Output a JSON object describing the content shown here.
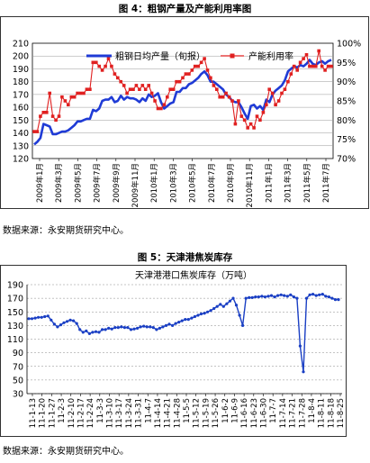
{
  "figure4": {
    "title": "图 4：粗钢产量及产能利用率图",
    "source": "数据来源：永安期货研究中心。"
  },
  "figure5": {
    "title": "图 5：天津港焦炭库存",
    "source": "数据来源：永安期货研究中心。"
  },
  "colors": {
    "production": "#1f3bd6",
    "utilization": "#e02020",
    "coke": "#1a3fc4",
    "plot_bg": "#ffffff"
  },
  "chart_data": [
    {
      "type": "line",
      "title": "",
      "legend_position": "top",
      "grid": true,
      "x_ticks": [
        "2009年1月",
        "2009年3月",
        "2009年5月",
        "2009年7月",
        "2009年9月",
        "2009年11月",
        "2010年1月",
        "2010年3月",
        "2010年5月",
        "2010年7月",
        "2010年9月",
        "2010年11月",
        "2011年1月",
        "2011年3月",
        "2011年5月",
        "2011年7月"
      ],
      "y_ticks": [
        "120",
        "130",
        "140",
        "150",
        "160",
        "170",
        "180",
        "190",
        "200",
        "210"
      ],
      "y2_ticks": [
        "70%",
        "75%",
        "80%",
        "85%",
        "90%",
        "95%",
        "100%"
      ],
      "ylim": [
        120,
        210
      ],
      "y2lim": [
        70,
        100
      ],
      "series": [
        {
          "name": "粗钢日均产量（旬报）",
          "axis": "left",
          "values": [
            131,
            133,
            136,
            147,
            146,
            145,
            139,
            139,
            140,
            141,
            141,
            142,
            144,
            146,
            149,
            149,
            150,
            151,
            151,
            158,
            157,
            159,
            165,
            166,
            166,
            168,
            164,
            165,
            169,
            166,
            168,
            167,
            167,
            166,
            164,
            167,
            165,
            170,
            168,
            169,
            171,
            164,
            159,
            161,
            163,
            164,
            172,
            172,
            175,
            175,
            178,
            179,
            181,
            183,
            186,
            188,
            185,
            180,
            180,
            178,
            176,
            174,
            170,
            168,
            165,
            164,
            164,
            160,
            155,
            151,
            161,
            162,
            159,
            161,
            158,
            166,
            164,
            170,
            173,
            175,
            177,
            181,
            188,
            190,
            192,
            191,
            193,
            192,
            194,
            197,
            194,
            193,
            195,
            196,
            194,
            196,
            197
          ]
        },
        {
          "name": "产能利用率",
          "axis": "right",
          "values": [
            77,
            77,
            81,
            82,
            82,
            87,
            81,
            80,
            81,
            86,
            85,
            84,
            86,
            86,
            87,
            87,
            87,
            88,
            88,
            95,
            95,
            94,
            93,
            94,
            96,
            94,
            92,
            91,
            90,
            89,
            87,
            88,
            88,
            89,
            88,
            89,
            88,
            89,
            87,
            85,
            83,
            83,
            84,
            86,
            88,
            88,
            90,
            90,
            91,
            92,
            92,
            93,
            94,
            94,
            95,
            96,
            93,
            91,
            89,
            88,
            86,
            86,
            87,
            86,
            85,
            79,
            85,
            81,
            80,
            78,
            79,
            78,
            81,
            80,
            82,
            84,
            88,
            87,
            84,
            85,
            87,
            88,
            90,
            92,
            94,
            93,
            95,
            96,
            97,
            94,
            94,
            94,
            98,
            94,
            93,
            94,
            94
          ]
        }
      ]
    },
    {
      "type": "line",
      "title": "天津港港口焦炭库存（万吨）",
      "grid": true,
      "x_ticks": [
        "11-1-13",
        "11-1-20",
        "11-1-27",
        "11-2-3",
        "11-2-10",
        "11-2-17",
        "11-2-24",
        "11-3-3",
        "11-3-10",
        "11-3-17",
        "11-3-24",
        "11-3-31",
        "11-4-7",
        "11-4-14",
        "11-4-21",
        "11-4-28",
        "11-5-5",
        "11-5-12",
        "11-5-19",
        "11-5-26",
        "11-6-2",
        "11-6-9",
        "11-6-16",
        "11-6-23",
        "11-6-30",
        "11-7-7",
        "11-7-14",
        "11-7-21",
        "11-7-28",
        "11-8-4",
        "11-8-11",
        "11-8-18",
        "11-8-25"
      ],
      "y_ticks": [
        "30",
        "50",
        "70",
        "90",
        "110",
        "130",
        "150",
        "170",
        "190"
      ],
      "ylim": [
        30,
        190
      ],
      "series": [
        {
          "name": "天津港焦炭库存",
          "values": [
            140,
            140,
            141,
            142,
            142,
            143,
            144,
            138,
            132,
            128,
            131,
            134,
            136,
            138,
            137,
            133,
            124,
            120,
            122,
            118,
            120,
            121,
            120,
            124,
            124,
            126,
            125,
            127,
            127,
            128,
            127,
            127,
            124,
            125,
            126,
            128,
            129,
            128,
            128,
            127,
            124,
            126,
            128,
            130,
            132,
            130,
            133,
            135,
            137,
            139,
            139,
            141,
            143,
            145,
            147,
            148,
            150,
            152,
            155,
            158,
            161,
            158,
            162,
            166,
            170,
            160,
            145,
            130,
            170,
            171,
            171,
            172,
            172,
            173,
            172,
            173,
            174,
            172,
            174,
            175,
            174,
            173,
            175,
            172,
            170,
            100,
            62,
            170,
            175,
            176,
            174,
            175,
            176,
            173,
            172,
            170,
            168,
            168
          ]
        }
      ]
    }
  ]
}
